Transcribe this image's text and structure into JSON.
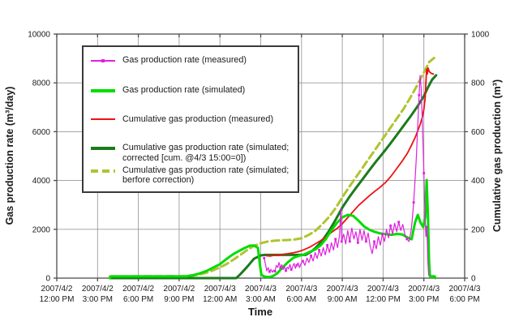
{
  "figure": {
    "xlabel": "Time",
    "ylabel_left": "Gas production rate (m³/day)",
    "ylabel_right": "Cumulative gas production (m³)"
  },
  "legend": {
    "entries": [
      {
        "series": "rate_measured",
        "label": "Gas production rate (measured)"
      },
      {
        "series": "rate_simulated",
        "label": "Gas production rate (simulated)"
      },
      {
        "series": "cum_measured",
        "label": "Cumulative gas production (measured)"
      },
      {
        "series": "cum_sim_corrected",
        "label": "Cumulative gas production rate (simulated; corrected [cum. @4/3 15:00=0])"
      },
      {
        "series": "cum_sim_before",
        "label": "Cumulative gas production rate (simulated; berfore correction)"
      }
    ]
  },
  "colors": {
    "grid": "#9a9a9a",
    "frame": "#4d4d4d",
    "tick_text": "#1a1a1a",
    "magenta": "#e020e0",
    "bright_green": "#00dc00",
    "red": "#ee1111",
    "dark_green": "#1b7b1b",
    "olive_dashed": "#afc42f"
  },
  "chart_data": {
    "type": "line",
    "title": "",
    "xlabel": "Time",
    "ylabel_left": "Gas production rate (m³/day)",
    "ylabel_right": "Cumulative gas production (m³)",
    "x_unit": "hours since 2007/4/2 12:00 PM",
    "x_range_hours": [
      0,
      30
    ],
    "ylim_left": [
      0,
      10000
    ],
    "ylim_right": [
      0,
      1000
    ],
    "grid": true,
    "legend_position": "upper-left-inside",
    "x_ticks": [
      {
        "date": "2007/4/2",
        "time": "12:00 PM"
      },
      {
        "date": "2007/4/2",
        "time": "3:00 PM"
      },
      {
        "date": "2007/4/2",
        "time": "6:00 PM"
      },
      {
        "date": "2007/4/2",
        "time": "9:00 PM"
      },
      {
        "date": "2007/4/3",
        "time": "12:00 AM"
      },
      {
        "date": "2007/4/3",
        "time": "3:00 AM"
      },
      {
        "date": "2007/4/3",
        "time": "6:00 AM"
      },
      {
        "date": "2007/4/3",
        "time": "9:00 AM"
      },
      {
        "date": "2007/4/3",
        "time": "12:00 PM"
      },
      {
        "date": "2007/4/3",
        "time": "3:00 PM"
      },
      {
        "date": "2007/4/3",
        "time": "6:00 PM"
      }
    ],
    "y_ticks_left": [
      0,
      2000,
      4000,
      6000,
      8000,
      10000
    ],
    "y_ticks_right": [
      0,
      200,
      400,
      600,
      800,
      1000
    ],
    "series": [
      {
        "id": "cum_sim_before",
        "name": "Cumulative gas production rate (simulated; berfore correction)",
        "axis": "right",
        "color": "#afc42f",
        "width": 3,
        "dash": "9 5",
        "marker": false,
        "points": [
          [
            3.9,
            7
          ],
          [
            9.5,
            8
          ],
          [
            10,
            10
          ],
          [
            10.5,
            15
          ],
          [
            11,
            22
          ],
          [
            11.5,
            32
          ],
          [
            12,
            44
          ],
          [
            12.5,
            58
          ],
          [
            13,
            76
          ],
          [
            13.5,
            95
          ],
          [
            14,
            115
          ],
          [
            14.5,
            132
          ],
          [
            15,
            143
          ],
          [
            15.5,
            150
          ],
          [
            16,
            153
          ],
          [
            16.5,
            155
          ],
          [
            17,
            156
          ],
          [
            17.5,
            158
          ],
          [
            18,
            163
          ],
          [
            18.5,
            176
          ],
          [
            19,
            193
          ],
          [
            19.5,
            219
          ],
          [
            20,
            249
          ],
          [
            20.5,
            286
          ],
          [
            21,
            331
          ],
          [
            21.5,
            373
          ],
          [
            22,
            413
          ],
          [
            22.5,
            453
          ],
          [
            23,
            493
          ],
          [
            23.5,
            533
          ],
          [
            24,
            573
          ],
          [
            24.5,
            613
          ],
          [
            25,
            653
          ],
          [
            25.5,
            693
          ],
          [
            26,
            739
          ],
          [
            26.5,
            789
          ],
          [
            27,
            843
          ],
          [
            27.4,
            886
          ],
          [
            27.75,
            902
          ]
        ]
      },
      {
        "id": "cum_sim_corrected",
        "name": "Cumulative gas production rate (simulated; corrected [cum. @4/3 15:00=0])",
        "axis": "right",
        "color": "#1b7b1b",
        "width": 3,
        "dash": null,
        "marker": false,
        "points": [
          [
            3.9,
            0
          ],
          [
            13.2,
            0
          ],
          [
            13.5,
            16
          ],
          [
            14,
            46
          ],
          [
            14.5,
            79
          ],
          [
            15,
            93
          ],
          [
            15.3,
            95
          ],
          [
            18.3,
            95
          ],
          [
            18.7,
            108
          ],
          [
            19,
            122
          ],
          [
            19.5,
            151
          ],
          [
            20,
            191
          ],
          [
            20.5,
            238
          ],
          [
            21,
            289
          ],
          [
            21.5,
            331
          ],
          [
            22,
            369
          ],
          [
            22.5,
            406
          ],
          [
            23,
            443
          ],
          [
            23.5,
            479
          ],
          [
            24,
            513
          ],
          [
            24.5,
            549
          ],
          [
            25,
            586
          ],
          [
            25.5,
            624
          ],
          [
            26,
            661
          ],
          [
            26.5,
            701
          ],
          [
            27,
            746
          ],
          [
            27.3,
            781
          ],
          [
            27.6,
            813
          ],
          [
            27.9,
            831
          ]
        ]
      },
      {
        "id": "cum_measured",
        "name": "Cumulative gas production (measured)",
        "axis": "right",
        "color": "#ee1111",
        "width": 1.8,
        "dash": null,
        "marker": false,
        "points": [
          [
            15.4,
            92
          ],
          [
            15.7,
            90
          ],
          [
            16,
            94
          ],
          [
            16.3,
            93
          ],
          [
            16.6,
            97
          ],
          [
            17,
            100
          ],
          [
            17.4,
            104
          ],
          [
            17.8,
            109
          ],
          [
            18.2,
            117
          ],
          [
            18.6,
            127
          ],
          [
            19,
            140
          ],
          [
            19.4,
            153
          ],
          [
            19.8,
            169
          ],
          [
            20.2,
            187
          ],
          [
            20.6,
            203
          ],
          [
            21,
            223
          ],
          [
            21.4,
            248
          ],
          [
            21.8,
            273
          ],
          [
            22.2,
            298
          ],
          [
            22.6,
            318
          ],
          [
            23,
            338
          ],
          [
            23.4,
            356
          ],
          [
            23.8,
            373
          ],
          [
            24.2,
            393
          ],
          [
            24.6,
            419
          ],
          [
            25,
            449
          ],
          [
            25.4,
            479
          ],
          [
            25.8,
            513
          ],
          [
            26.1,
            546
          ],
          [
            26.4,
            581
          ],
          [
            26.7,
            626
          ],
          [
            26.9,
            661
          ],
          [
            27,
            692
          ],
          [
            27.1,
            742
          ],
          [
            27.15,
            802
          ],
          [
            27.2,
            856
          ],
          [
            27.25,
            836
          ],
          [
            27.3,
            861
          ],
          [
            27.4,
            846
          ],
          [
            27.55,
            839
          ],
          [
            27.7,
            836
          ]
        ]
      },
      {
        "id": "rate_simulated",
        "name": "Gas production rate (simulated)",
        "axis": "left",
        "color": "#00dc00",
        "width": 3,
        "dash": null,
        "marker": false,
        "points": [
          [
            3.9,
            0
          ],
          [
            4,
            70
          ],
          [
            9.5,
            70
          ],
          [
            10,
            120
          ],
          [
            10.5,
            190
          ],
          [
            11,
            290
          ],
          [
            11.5,
            430
          ],
          [
            12,
            570
          ],
          [
            12.5,
            790
          ],
          [
            13,
            990
          ],
          [
            13.4,
            1110
          ],
          [
            13.8,
            1230
          ],
          [
            14.2,
            1330
          ],
          [
            14.5,
            1340
          ],
          [
            14.8,
            1240
          ],
          [
            14.95,
            500
          ],
          [
            15.05,
            130
          ],
          [
            15.3,
            60
          ],
          [
            15.6,
            40
          ],
          [
            15.9,
            80
          ],
          [
            16.2,
            190
          ],
          [
            16.6,
            430
          ],
          [
            17,
            650
          ],
          [
            17.4,
            830
          ],
          [
            17.8,
            910
          ],
          [
            18.2,
            970
          ],
          [
            18.6,
            1070
          ],
          [
            19,
            1170
          ],
          [
            19.4,
            1340
          ],
          [
            19.8,
            1610
          ],
          [
            20.2,
            1960
          ],
          [
            20.6,
            2260
          ],
          [
            21,
            2490
          ],
          [
            21.4,
            2590
          ],
          [
            21.8,
            2550
          ],
          [
            22.2,
            2350
          ],
          [
            22.6,
            2120
          ],
          [
            23,
            1980
          ],
          [
            23.4,
            1890
          ],
          [
            23.8,
            1830
          ],
          [
            24.2,
            1800
          ],
          [
            24.6,
            1770
          ],
          [
            25,
            1810
          ],
          [
            25.4,
            1790
          ],
          [
            25.8,
            1660
          ],
          [
            26.1,
            1590
          ],
          [
            26.35,
            2280
          ],
          [
            26.55,
            2590
          ],
          [
            26.75,
            2280
          ],
          [
            26.95,
            2090
          ],
          [
            27.1,
            2500
          ],
          [
            27.2,
            4020
          ],
          [
            27.3,
            2600
          ],
          [
            27.38,
            700
          ],
          [
            27.45,
            80
          ],
          [
            27.8,
            70
          ],
          [
            27.85,
            0
          ]
        ]
      },
      {
        "id": "rate_measured",
        "name": "Gas production rate (measured)",
        "axis": "left",
        "color": "#e020e0",
        "width": 1.2,
        "dash": null,
        "marker": true,
        "points": [
          [
            15.25,
            820
          ],
          [
            15.35,
            560
          ],
          [
            15.45,
            300
          ],
          [
            15.55,
            430
          ],
          [
            15.65,
            260
          ],
          [
            15.75,
            360
          ],
          [
            15.85,
            240
          ],
          [
            15.95,
            330
          ],
          [
            16.05,
            280
          ],
          [
            16.15,
            520
          ],
          [
            16.25,
            440
          ],
          [
            16.35,
            640
          ],
          [
            16.45,
            420
          ],
          [
            16.55,
            550
          ],
          [
            16.65,
            350
          ],
          [
            16.75,
            480
          ],
          [
            16.85,
            300
          ],
          [
            16.95,
            450
          ],
          [
            17.05,
            380
          ],
          [
            17.15,
            560
          ],
          [
            17.25,
            350
          ],
          [
            17.35,
            470
          ],
          [
            17.45,
            600
          ],
          [
            17.55,
            400
          ],
          [
            17.65,
            530
          ],
          [
            17.75,
            620
          ],
          [
            17.85,
            430
          ],
          [
            17.95,
            580
          ],
          [
            18.1,
            700
          ],
          [
            18.25,
            520
          ],
          [
            18.4,
            820
          ],
          [
            18.55,
            640
          ],
          [
            18.7,
            920
          ],
          [
            18.85,
            700
          ],
          [
            19,
            1050
          ],
          [
            19.15,
            800
          ],
          [
            19.3,
            1150
          ],
          [
            19.45,
            900
          ],
          [
            19.6,
            1250
          ],
          [
            19.75,
            950
          ],
          [
            19.9,
            1350
          ],
          [
            20.05,
            1050
          ],
          [
            20.2,
            1450
          ],
          [
            20.35,
            1150
          ],
          [
            20.5,
            1600
          ],
          [
            20.65,
            1250
          ],
          [
            20.8,
            1750
          ],
          [
            20.9,
            2850
          ],
          [
            20.95,
            1500
          ],
          [
            21.1,
            1800
          ],
          [
            21.25,
            1400
          ],
          [
            21.4,
            1950
          ],
          [
            21.55,
            1500
          ],
          [
            21.7,
            2050
          ],
          [
            21.85,
            1600
          ],
          [
            22,
            1900
          ],
          [
            22.15,
            1450
          ],
          [
            22.3,
            2000
          ],
          [
            22.45,
            1550
          ],
          [
            22.6,
            1950
          ],
          [
            22.75,
            1500
          ],
          [
            22.9,
            1850
          ],
          [
            23.05,
            1300
          ],
          [
            23.2,
            1000
          ],
          [
            23.35,
            1500
          ],
          [
            23.5,
            1200
          ],
          [
            23.65,
            1700
          ],
          [
            23.8,
            1350
          ],
          [
            23.95,
            1800
          ],
          [
            24.1,
            1500
          ],
          [
            24.25,
            2000
          ],
          [
            24.4,
            1650
          ],
          [
            24.55,
            2150
          ],
          [
            24.7,
            1800
          ],
          [
            24.85,
            2250
          ],
          [
            25,
            1900
          ],
          [
            25.15,
            2300
          ],
          [
            25.3,
            1950
          ],
          [
            25.45,
            2200
          ],
          [
            25.6,
            1800
          ],
          [
            25.75,
            1600
          ],
          [
            25.9,
            1500
          ],
          [
            26.05,
            1900
          ],
          [
            26.15,
            2400
          ],
          [
            26.25,
            3100
          ],
          [
            26.35,
            4000
          ],
          [
            26.45,
            5000
          ],
          [
            26.55,
            6300
          ],
          [
            26.65,
            7500
          ],
          [
            26.72,
            8300
          ],
          [
            26.8,
            7800
          ],
          [
            26.9,
            6200
          ],
          [
            27,
            4300
          ],
          [
            27.05,
            3200
          ],
          [
            27.1,
            2400
          ],
          [
            27.15,
            1700
          ],
          [
            27.2,
            2100
          ],
          [
            27.25,
            1500
          ],
          [
            27.3,
            600
          ],
          [
            27.35,
            120
          ]
        ]
      }
    ]
  }
}
